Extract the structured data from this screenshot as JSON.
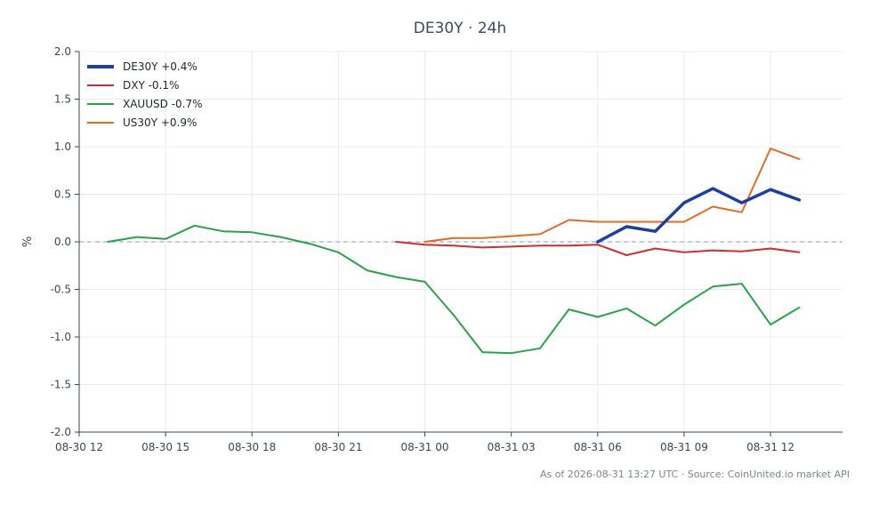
{
  "chart_data": {
    "type": "line",
    "title": "DE30Y · 24h",
    "xlabel": "",
    "ylabel": "%",
    "ylim": [
      -2.0,
      2.0
    ],
    "xlim": [
      "08-30 12",
      "08-31 14:30"
    ],
    "x_ticks": [
      "08-30 12",
      "08-30 15",
      "08-30 18",
      "08-30 21",
      "08-31 00",
      "08-31 03",
      "08-31 06",
      "08-31 09",
      "08-31 12"
    ],
    "y_ticks": [
      -2.0,
      -1.5,
      -1.0,
      -0.5,
      0.0,
      0.5,
      1.0,
      1.5,
      2.0
    ],
    "grid": true,
    "zero_line": true,
    "legend": "top-left",
    "series": [
      {
        "name": "DE30Y +0.4%",
        "color": "#1f3f9e",
        "x": [
          "08-31 06",
          "08-31 07",
          "08-31 08",
          "08-31 09",
          "08-31 10",
          "08-31 11",
          "08-31 12",
          "08-31 13"
        ],
        "values": [
          0.0,
          0.16,
          0.11,
          0.41,
          0.56,
          0.41,
          0.55,
          0.44
        ]
      },
      {
        "name": "DXY -0.1%",
        "color": "#cc2f2f",
        "x": [
          "08-30 23",
          "08-31 00",
          "08-31 01",
          "08-31 02",
          "08-31 03",
          "08-31 04",
          "08-31 05",
          "08-31 06",
          "08-31 07",
          "08-31 08",
          "08-31 09",
          "08-31 10",
          "08-31 11",
          "08-31 12",
          "08-31 13"
        ],
        "values": [
          0.0,
          -0.03,
          -0.04,
          -0.06,
          -0.05,
          -0.04,
          -0.04,
          -0.03,
          -0.14,
          -0.07,
          -0.11,
          -0.09,
          -0.1,
          -0.07,
          -0.11
        ]
      },
      {
        "name": "XAUUSD -0.7%",
        "color": "#2ba14b",
        "x": [
          "08-30 13",
          "08-30 14",
          "08-30 15",
          "08-30 16",
          "08-30 17",
          "08-30 18",
          "08-30 19",
          "08-30 20",
          "08-30 21",
          "08-30 22",
          "08-30 23",
          "08-31 00",
          "08-31 01",
          "08-31 02",
          "08-31 03",
          "08-31 04",
          "08-31 05",
          "08-31 06",
          "08-31 07",
          "08-31 08",
          "08-31 09",
          "08-31 10",
          "08-31 11",
          "08-31 12",
          "08-31 13"
        ],
        "values": [
          0.0,
          0.05,
          0.03,
          0.17,
          0.11,
          0.1,
          0.05,
          -0.02,
          -0.11,
          -0.3,
          -0.37,
          -0.42,
          -0.77,
          -1.16,
          -1.17,
          -1.12,
          -0.71,
          -0.79,
          -0.7,
          -0.88,
          -0.66,
          -0.47,
          -0.44,
          -0.87,
          -0.69
        ]
      },
      {
        "name": "US30Y +0.9%",
        "color": "#e06c26",
        "x": [
          "08-31 00",
          "08-31 01",
          "08-31 02",
          "08-31 03",
          "08-31 04",
          "08-31 05",
          "08-31 06",
          "08-31 07",
          "08-31 08",
          "08-31 09",
          "08-31 10",
          "08-31 11",
          "08-31 12",
          "08-31 13"
        ],
        "values": [
          0.0,
          0.04,
          0.04,
          0.06,
          0.08,
          0.23,
          0.21,
          0.21,
          0.21,
          0.21,
          0.37,
          0.31,
          0.98,
          0.87
        ]
      }
    ],
    "footer": "As of 2026-08-31 13:27 UTC · Source: CoinUnited.io market API"
  }
}
